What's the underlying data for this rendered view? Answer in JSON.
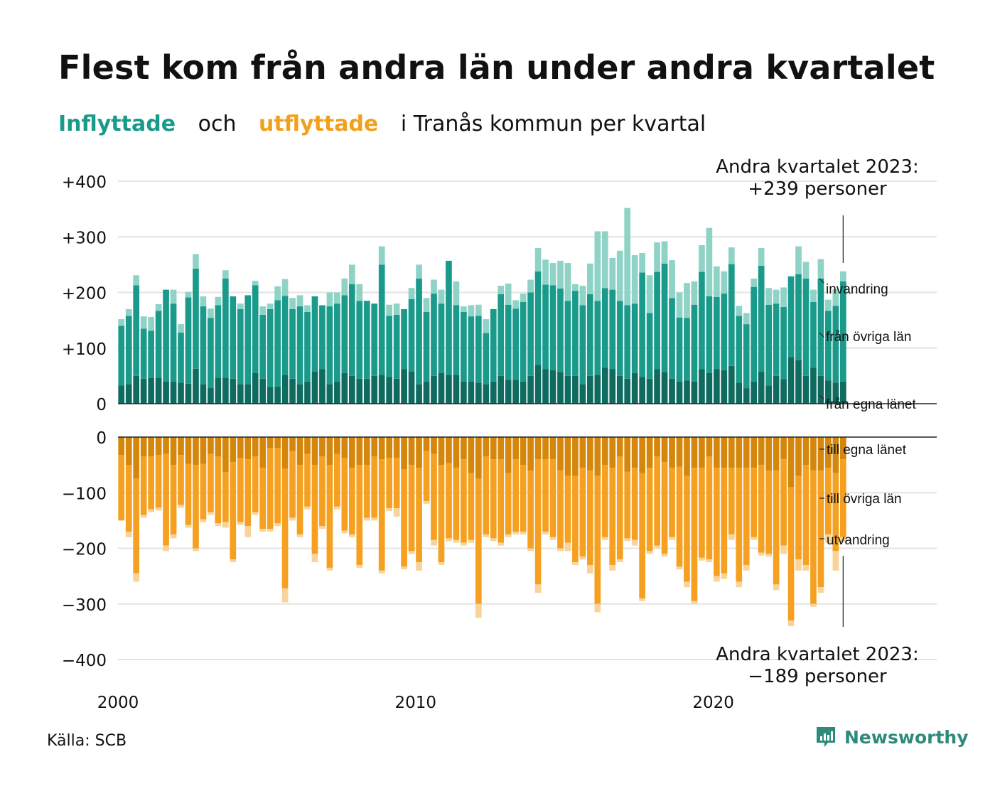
{
  "title": "Flest kom från andra län under andra kvartalet",
  "subtitle": {
    "part1": "Inflyttade",
    "part2": "och",
    "part3": "utflyttade",
    "part4": "i Tranås kommun per kvartal"
  },
  "source": "Källa: SCB",
  "brand": "Newsworthy",
  "colors": {
    "in_egna": "#0f6b5f",
    "in_ovriga": "#1a9a8a",
    "in_invandring": "#8fd3c7",
    "ut_egna": "#d4870c",
    "ut_ovriga": "#f5a020",
    "ut_utvandring": "#f8d49a",
    "grid": "#e3e3e3",
    "zero": "#222222"
  },
  "chart_data": {
    "type": "bar",
    "x_start_year": 2000,
    "x_ticks": [
      "2000",
      "2010",
      "2020"
    ],
    "inflow_ticks": [
      "+400",
      "+300",
      "+200",
      "+100",
      "0"
    ],
    "outflow_ticks": [
      "0",
      "−100",
      "−200",
      "−300",
      "−400"
    ],
    "inflow_ylim": [
      0,
      400
    ],
    "outflow_ylim": [
      -400,
      0
    ],
    "inflow_annotation": {
      "line1": "Andra kvartalet 2023:",
      "line2": "+239 personer"
    },
    "outflow_annotation": {
      "line1": "Andra kvartalet 2023:",
      "line2": "−189 personer"
    },
    "inflow_legend": [
      "invandring",
      "från övriga län",
      "från egna länet"
    ],
    "outflow_legend": [
      "till egna länet",
      "till övriga län",
      "utvandring"
    ],
    "inflow_series": [
      {
        "name": "från egna länet",
        "values": [
          33,
          35,
          50,
          45,
          46,
          47,
          40,
          40,
          38,
          36,
          63,
          35,
          29,
          47,
          47,
          45,
          35,
          35,
          55,
          45,
          30,
          31,
          52,
          45,
          35,
          40,
          58,
          62,
          35,
          40,
          55,
          50,
          45,
          45,
          50,
          52,
          48,
          45,
          62,
          58,
          35,
          40,
          50,
          55,
          52,
          52,
          40,
          40,
          38,
          35,
          40,
          50,
          43,
          43,
          40,
          50,
          70,
          62,
          60,
          57,
          50,
          50,
          35,
          50,
          52,
          65,
          62,
          50,
          45,
          55,
          48,
          45,
          62,
          57,
          45,
          40,
          42,
          40,
          62,
          55,
          62,
          60,
          68,
          38,
          28,
          40,
          58,
          33,
          50,
          44,
          84,
          78,
          50,
          65,
          50,
          42,
          38,
          40
        ]
      },
      {
        "name": "från övriga län",
        "values": [
          107,
          123,
          163,
          90,
          85,
          120,
          165,
          140,
          90,
          155,
          180,
          140,
          125,
          130,
          178,
          148,
          135,
          160,
          158,
          115,
          140,
          155,
          142,
          125,
          140,
          125,
          135,
          115,
          140,
          140,
          140,
          165,
          140,
          140,
          130,
          198,
          110,
          115,
          108,
          130,
          190,
          125,
          148,
          125,
          205,
          125,
          125,
          117,
          120,
          92,
          130,
          147,
          135,
          128,
          143,
          150,
          168,
          152,
          153,
          150,
          135,
          153,
          142,
          147,
          133,
          143,
          143,
          135,
          132,
          125,
          188,
          118,
          175,
          195,
          145,
          115,
          112,
          138,
          175,
          138,
          130,
          138,
          183,
          120,
          115,
          170,
          190,
          145,
          130,
          130,
          145,
          155,
          175,
          118,
          175,
          125,
          138,
          180
        ]
      },
      {
        "name": "invandring",
        "values": [
          12,
          12,
          18,
          22,
          25,
          12,
          0,
          25,
          15,
          10,
          26,
          18,
          17,
          15,
          15,
          0,
          10,
          0,
          8,
          15,
          10,
          25,
          30,
          20,
          20,
          12,
          0,
          0,
          25,
          20,
          30,
          35,
          30,
          0,
          0,
          33,
          20,
          20,
          0,
          20,
          25,
          25,
          25,
          25,
          0,
          43,
          10,
          20,
          20,
          25,
          0,
          15,
          38,
          15,
          15,
          23,
          42,
          45,
          40,
          50,
          68,
          12,
          35,
          55,
          125,
          102,
          57,
          90,
          175,
          87,
          35,
          68,
          53,
          40,
          68,
          45,
          63,
          42,
          48,
          123,
          55,
          40,
          30,
          18,
          20,
          15,
          32,
          30,
          25,
          35,
          0,
          50,
          30,
          22,
          35,
          20,
          30,
          18
        ]
      }
    ],
    "outflow_series": [
      {
        "name": "till egna länet",
        "values": [
          32,
          50,
          75,
          35,
          35,
          32,
          30,
          50,
          32,
          48,
          50,
          48,
          30,
          35,
          63,
          45,
          38,
          40,
          35,
          55,
          20,
          20,
          57,
          25,
          50,
          30,
          50,
          35,
          50,
          30,
          38,
          55,
          50,
          50,
          35,
          40,
          38,
          38,
          58,
          50,
          55,
          25,
          30,
          50,
          47,
          55,
          40,
          65,
          75,
          35,
          40,
          40,
          65,
          40,
          50,
          60,
          40,
          40,
          40,
          60,
          70,
          70,
          55,
          60,
          70,
          50,
          55,
          35,
          62,
          55,
          65,
          55,
          35,
          45,
          55,
          53,
          70,
          55,
          55,
          35,
          55,
          55,
          55,
          55,
          55,
          55,
          50,
          60,
          60,
          40,
          90,
          70,
          50,
          60,
          60,
          55,
          65,
          40
        ]
      },
      {
        "name": "till övriga län",
        "values": [
          118,
          120,
          170,
          105,
          95,
          95,
          165,
          125,
          90,
          110,
          150,
          100,
          105,
          120,
          90,
          175,
          115,
          120,
          100,
          110,
          145,
          135,
          215,
          120,
          125,
          95,
          160,
          125,
          185,
          95,
          130,
          120,
          180,
          95,
          110,
          200,
          90,
          90,
          175,
          155,
          170,
          90,
          155,
          175,
          135,
          130,
          150,
          120,
          225,
          140,
          142,
          150,
          110,
          130,
          120,
          140,
          225,
          130,
          140,
          140,
          120,
          155,
          160,
          170,
          230,
          130,
          175,
          185,
          120,
          130,
          225,
          150,
          160,
          165,
          125,
          180,
          190,
          240,
          162,
          185,
          195,
          190,
          120,
          205,
          175,
          125,
          158,
          150,
          205,
          155,
          240,
          150,
          180,
          240,
          210,
          120,
          140,
          140
        ]
      },
      {
        "name": "utvandring",
        "values": [
          0,
          10,
          15,
          5,
          5,
          5,
          10,
          7,
          5,
          5,
          5,
          5,
          5,
          5,
          10,
          5,
          5,
          20,
          5,
          5,
          5,
          5,
          25,
          5,
          5,
          5,
          15,
          5,
          5,
          5,
          5,
          5,
          5,
          5,
          5,
          5,
          5,
          15,
          5,
          5,
          15,
          5,
          10,
          5,
          5,
          5,
          5,
          5,
          25,
          5,
          5,
          5,
          5,
          5,
          5,
          5,
          15,
          5,
          5,
          5,
          15,
          5,
          5,
          15,
          15,
          5,
          10,
          5,
          5,
          10,
          5,
          5,
          5,
          5,
          5,
          5,
          10,
          5,
          5,
          5,
          10,
          10,
          10,
          10,
          10,
          5,
          5,
          5,
          10,
          15,
          10,
          20,
          10,
          5,
          10,
          15,
          35,
          9
        ]
      }
    ]
  }
}
